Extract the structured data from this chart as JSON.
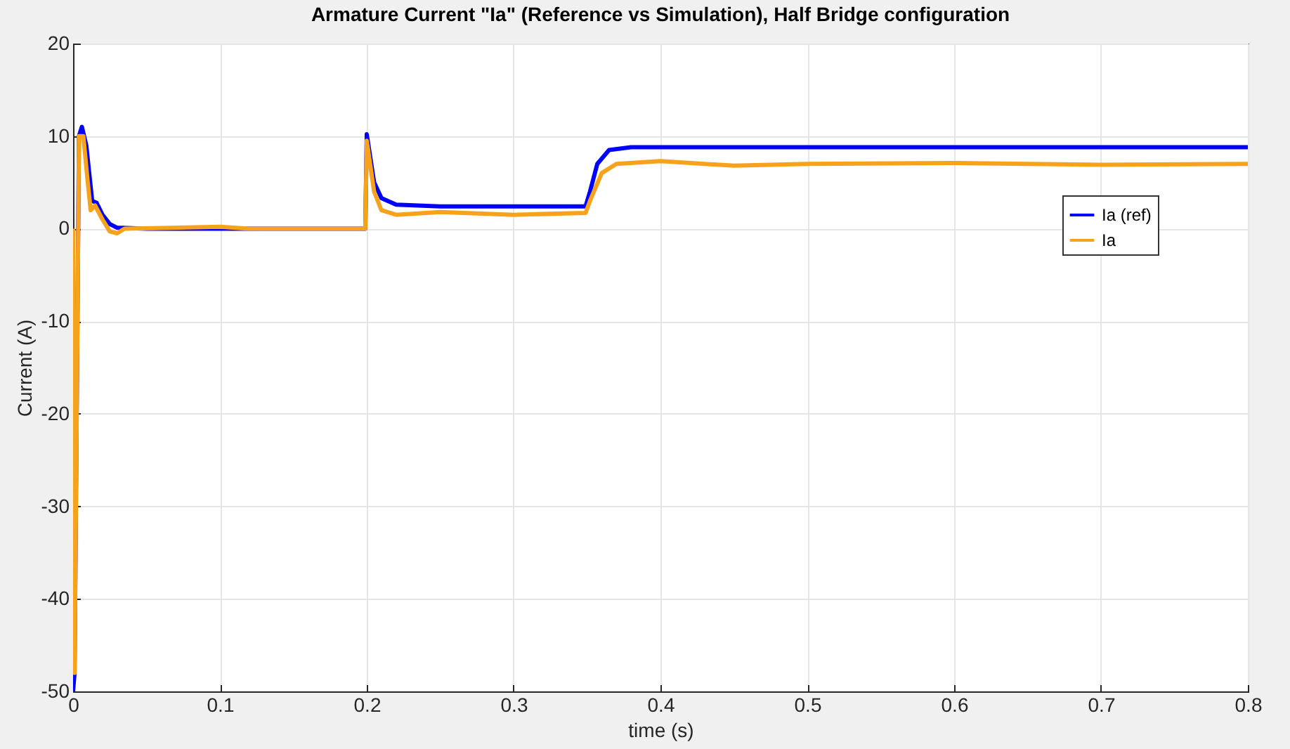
{
  "chart_data": {
    "type": "line",
    "title": "Armature Current \"Ia\" (Reference vs Simulation), Half Bridge configuration",
    "xlabel": "time (s)",
    "ylabel": "Current (A)",
    "xlim": [
      0,
      0.8
    ],
    "ylim": [
      -50,
      20
    ],
    "xticks": [
      0,
      0.1,
      0.2,
      0.3,
      0.4,
      0.5,
      0.6,
      0.7,
      0.8
    ],
    "yticks": [
      -50,
      -40,
      -30,
      -20,
      -10,
      0,
      10,
      20
    ],
    "grid": true,
    "legend": "right",
    "series": [
      {
        "name": "Ia (ref)",
        "color": "#0000ff",
        "x": [
          0,
          0.001,
          0.004,
          0.006,
          0.009,
          0.013,
          0.016,
          0.02,
          0.025,
          0.03,
          0.05,
          0.199,
          0.2,
          0.205,
          0.21,
          0.22,
          0.25,
          0.349,
          0.352,
          0.357,
          0.365,
          0.38,
          0.8
        ],
        "values": [
          -50,
          -48,
          10,
          11,
          9,
          3,
          2.8,
          1.5,
          0.5,
          0.1,
          0,
          0,
          10.2,
          5,
          3.3,
          2.6,
          2.4,
          2.4,
          4,
          7,
          8.5,
          8.8,
          8.8
        ]
      },
      {
        "name": "Ia",
        "color": "#f7a21b",
        "x": [
          0,
          0.001,
          0.003,
          0.004,
          0.007,
          0.01,
          0.012,
          0.015,
          0.02,
          0.025,
          0.03,
          0.035,
          0.1,
          0.12,
          0.199,
          0.2,
          0.205,
          0.21,
          0.22,
          0.25,
          0.3,
          0.349,
          0.352,
          0.36,
          0.37,
          0.4,
          0.45,
          0.5,
          0.6,
          0.7,
          0.8
        ],
        "values": [
          0,
          -48,
          -10,
          10,
          10,
          5,
          2,
          2.5,
          1,
          -0.3,
          -0.5,
          0,
          0.2,
          0,
          0,
          9.5,
          4,
          2,
          1.5,
          1.8,
          1.5,
          1.7,
          3,
          6,
          7,
          7.3,
          6.8,
          7,
          7.1,
          6.9,
          7
        ]
      }
    ]
  }
}
